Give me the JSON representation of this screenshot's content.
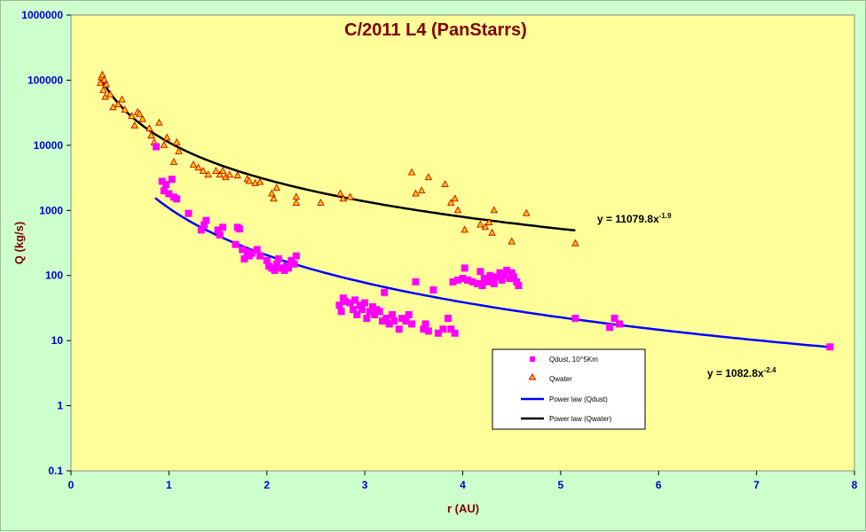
{
  "chart_data": {
    "type": "scatter",
    "title": "C/2011 L4 (PanStarrs)",
    "xlabel": "r (AU)",
    "ylabel": "Q (kg/s)",
    "xlim": [
      0,
      8
    ],
    "ylim": [
      0.1,
      1000000
    ],
    "yscale": "log",
    "xticks": [
      "0",
      "1",
      "2",
      "3",
      "4",
      "5",
      "6",
      "7",
      "8"
    ],
    "yticks": [
      "0.1",
      "1",
      "10",
      "100",
      "1000",
      "10000",
      "100000",
      "1000000"
    ],
    "grid": false,
    "legend_position": "bottom-right",
    "colors": {
      "plot_bg": "#ffff99",
      "chart_bg": "#ccffcc",
      "dust": "#ff00ff",
      "water_fill": "#ffcc00",
      "water_edge": "#cc0000",
      "dust_fit": "#0000ff",
      "water_fit": "#000000"
    },
    "legend": [
      {
        "label": "Qdust, 10^5Km",
        "marker": "square"
      },
      {
        "label": "Qwater",
        "marker": "triangle"
      },
      {
        "label": "Power law (Qdust)",
        "marker": "line"
      },
      {
        "label": "Power law (Qwater)",
        "marker": "line"
      }
    ],
    "equations": {
      "water": {
        "base": "y = 11079.8x",
        "exp": "-1.9"
      },
      "dust": {
        "base": "y = 1082.8x",
        "exp": "-2.4"
      }
    },
    "fits": [
      {
        "name": "Power law (Qdust)",
        "coef": 1082.8,
        "exp": -2.4,
        "x_range": [
          0.86,
          7.75
        ]
      },
      {
        "name": "Power law (Qwater)",
        "coef": 11079.8,
        "exp": -1.9,
        "x_range": [
          0.3,
          5.15
        ]
      }
    ],
    "series": [
      {
        "name": "Qwater",
        "points": [
          [
            0.3,
            90000
          ],
          [
            0.31,
            110000
          ],
          [
            0.32,
            120000
          ],
          [
            0.33,
            70000
          ],
          [
            0.34,
            100000
          ],
          [
            0.35,
            55000
          ],
          [
            0.36,
            85000
          ],
          [
            0.4,
            60000
          ],
          [
            0.43,
            38000
          ],
          [
            0.48,
            42000
          ],
          [
            0.52,
            50000
          ],
          [
            0.55,
            35000
          ],
          [
            0.62,
            28000
          ],
          [
            0.65,
            20000
          ],
          [
            0.68,
            32000
          ],
          [
            0.7,
            30000
          ],
          [
            0.73,
            25000
          ],
          [
            0.8,
            18000
          ],
          [
            0.82,
            14000
          ],
          [
            0.85,
            11000
          ],
          [
            0.9,
            22000
          ],
          [
            0.95,
            10000
          ],
          [
            0.98,
            13000
          ],
          [
            1.05,
            5500
          ],
          [
            1.08,
            11000
          ],
          [
            1.1,
            8000
          ],
          [
            1.25,
            5000
          ],
          [
            1.3,
            4500
          ],
          [
            1.35,
            4000
          ],
          [
            1.4,
            3500
          ],
          [
            1.48,
            4000
          ],
          [
            1.52,
            3500
          ],
          [
            1.55,
            4000
          ],
          [
            1.58,
            3200
          ],
          [
            1.62,
            3500
          ],
          [
            1.7,
            3400
          ],
          [
            1.8,
            3000
          ],
          [
            1.82,
            2800
          ],
          [
            1.88,
            2600
          ],
          [
            1.93,
            2700
          ],
          [
            2.05,
            1800
          ],
          [
            2.07,
            1500
          ],
          [
            2.1,
            2200
          ],
          [
            2.3,
            1600
          ],
          [
            2.3,
            1300
          ],
          [
            2.55,
            1300
          ],
          [
            2.75,
            1800
          ],
          [
            2.78,
            1500
          ],
          [
            2.85,
            1600
          ],
          [
            3.48,
            3800
          ],
          [
            3.52,
            1800
          ],
          [
            3.58,
            2000
          ],
          [
            3.65,
            3200
          ],
          [
            3.82,
            2500
          ],
          [
            3.88,
            1300
          ],
          [
            3.92,
            1500
          ],
          [
            3.95,
            1000
          ],
          [
            4.02,
            500
          ],
          [
            4.18,
            600
          ],
          [
            4.23,
            550
          ],
          [
            4.27,
            650
          ],
          [
            4.3,
            450
          ],
          [
            4.32,
            1000
          ],
          [
            4.5,
            330
          ],
          [
            4.65,
            900
          ],
          [
            5.15,
            310
          ]
        ]
      },
      {
        "name": "Qdust, 10^5Km",
        "points": [
          [
            0.87,
            9500
          ],
          [
            0.93,
            2800
          ],
          [
            0.95,
            2000
          ],
          [
            0.97,
            2500
          ],
          [
            1.0,
            1800
          ],
          [
            1.03,
            3000
          ],
          [
            1.05,
            1600
          ],
          [
            1.08,
            1500
          ],
          [
            1.2,
            900
          ],
          [
            1.33,
            500
          ],
          [
            1.36,
            600
          ],
          [
            1.38,
            700
          ],
          [
            1.5,
            500
          ],
          [
            1.52,
            420
          ],
          [
            1.55,
            550
          ],
          [
            1.68,
            300
          ],
          [
            1.7,
            550
          ],
          [
            1.72,
            520
          ],
          [
            1.75,
            250
          ],
          [
            1.77,
            180
          ],
          [
            1.8,
            230
          ],
          [
            1.82,
            200
          ],
          [
            1.85,
            220
          ],
          [
            1.9,
            250
          ],
          [
            1.93,
            200
          ],
          [
            2.0,
            170
          ],
          [
            2.02,
            140
          ],
          [
            2.05,
            130
          ],
          [
            2.08,
            120
          ],
          [
            2.1,
            150
          ],
          [
            2.12,
            180
          ],
          [
            2.15,
            130
          ],
          [
            2.18,
            120
          ],
          [
            2.2,
            140
          ],
          [
            2.22,
            130
          ],
          [
            2.25,
            170
          ],
          [
            2.28,
            150
          ],
          [
            2.3,
            200
          ],
          [
            2.74,
            35
          ],
          [
            2.76,
            28
          ],
          [
            2.78,
            45
          ],
          [
            2.8,
            40
          ],
          [
            2.85,
            38
          ],
          [
            2.88,
            30
          ],
          [
            2.9,
            42
          ],
          [
            2.92,
            25
          ],
          [
            2.95,
            35
          ],
          [
            2.97,
            30
          ],
          [
            3.0,
            38
          ],
          [
            3.02,
            22
          ],
          [
            3.05,
            28
          ],
          [
            3.08,
            33
          ],
          [
            3.1,
            25
          ],
          [
            3.12,
            30
          ],
          [
            3.15,
            28
          ],
          [
            3.18,
            20
          ],
          [
            3.2,
            55
          ],
          [
            3.22,
            22
          ],
          [
            3.25,
            18
          ],
          [
            3.28,
            25
          ],
          [
            3.3,
            20
          ],
          [
            3.35,
            15
          ],
          [
            3.38,
            22
          ],
          [
            3.42,
            20
          ],
          [
            3.45,
            25
          ],
          [
            3.48,
            18
          ],
          [
            3.52,
            80
          ],
          [
            3.6,
            15
          ],
          [
            3.62,
            18
          ],
          [
            3.65,
            14
          ],
          [
            3.7,
            60
          ],
          [
            3.75,
            13
          ],
          [
            3.8,
            15
          ],
          [
            3.85,
            22
          ],
          [
            3.88,
            15
          ],
          [
            3.9,
            80
          ],
          [
            3.92,
            13
          ],
          [
            3.95,
            85
          ],
          [
            4.0,
            90
          ],
          [
            4.02,
            130
          ],
          [
            4.05,
            85
          ],
          [
            4.1,
            80
          ],
          [
            4.15,
            75
          ],
          [
            4.18,
            115
          ],
          [
            4.2,
            70
          ],
          [
            4.22,
            90
          ],
          [
            4.25,
            80
          ],
          [
            4.28,
            100
          ],
          [
            4.3,
            85
          ],
          [
            4.32,
            75
          ],
          [
            4.35,
            95
          ],
          [
            4.38,
            110
          ],
          [
            4.4,
            85
          ],
          [
            4.42,
            100
          ],
          [
            4.45,
            120
          ],
          [
            4.48,
            90
          ],
          [
            4.5,
            110
          ],
          [
            4.52,
            95
          ],
          [
            4.55,
            80
          ],
          [
            4.57,
            70
          ],
          [
            5.15,
            22
          ],
          [
            5.5,
            16
          ],
          [
            5.55,
            22
          ],
          [
            5.6,
            18
          ],
          [
            7.75,
            8
          ]
        ]
      }
    ]
  }
}
